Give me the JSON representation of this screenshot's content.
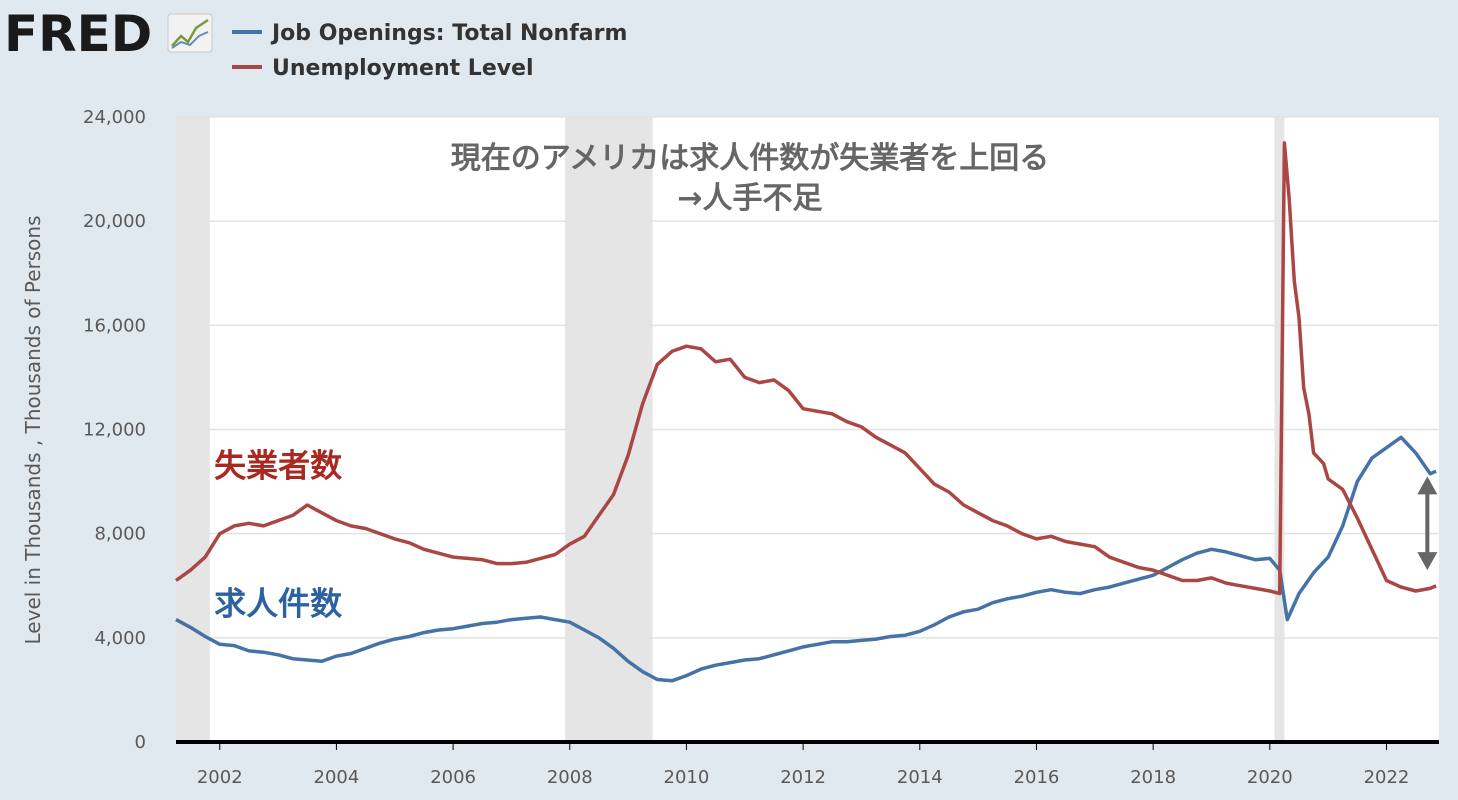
{
  "logo": {
    "text": "FRED"
  },
  "chart_data": {
    "type": "line",
    "title": "現在のアメリカは求人件数が失業者を上回る",
    "subtitle": "→人手不足",
    "xlabel": "",
    "ylabel": "Level in Thousands , Thousands of Persons",
    "xlim": [
      2001.25,
      2022.9
    ],
    "ylim": [
      0,
      24000
    ],
    "x_ticks": [
      "2002",
      "2004",
      "2006",
      "2008",
      "2010",
      "2012",
      "2014",
      "2016",
      "2018",
      "2020",
      "2022"
    ],
    "y_ticks": [
      "0",
      "4,000",
      "8,000",
      "12,000",
      "16,000",
      "20,000",
      "24,000"
    ],
    "grid": true,
    "legend_position": "top-left",
    "recessions": [
      [
        2001.25,
        2001.83
      ],
      [
        2007.92,
        2009.42
      ],
      [
        2020.08,
        2020.25
      ]
    ],
    "series": [
      {
        "name": "Job Openings: Total Nonfarm",
        "color": "#4572a7",
        "points": [
          [
            2001.25,
            4700
          ],
          [
            2001.5,
            4400
          ],
          [
            2001.75,
            4050
          ],
          [
            2002.0,
            3750
          ],
          [
            2002.25,
            3700
          ],
          [
            2002.5,
            3500
          ],
          [
            2002.75,
            3450
          ],
          [
            2003.0,
            3350
          ],
          [
            2003.25,
            3200
          ],
          [
            2003.5,
            3150
          ],
          [
            2003.75,
            3100
          ],
          [
            2004.0,
            3300
          ],
          [
            2004.25,
            3400
          ],
          [
            2004.5,
            3600
          ],
          [
            2004.75,
            3800
          ],
          [
            2005.0,
            3950
          ],
          [
            2005.25,
            4050
          ],
          [
            2005.5,
            4200
          ],
          [
            2005.75,
            4300
          ],
          [
            2006.0,
            4350
          ],
          [
            2006.25,
            4450
          ],
          [
            2006.5,
            4550
          ],
          [
            2006.75,
            4600
          ],
          [
            2007.0,
            4700
          ],
          [
            2007.25,
            4750
          ],
          [
            2007.5,
            4800
          ],
          [
            2007.75,
            4700
          ],
          [
            2008.0,
            4600
          ],
          [
            2008.25,
            4300
          ],
          [
            2008.5,
            4000
          ],
          [
            2008.75,
            3600
          ],
          [
            2009.0,
            3100
          ],
          [
            2009.25,
            2700
          ],
          [
            2009.5,
            2400
          ],
          [
            2009.75,
            2350
          ],
          [
            2010.0,
            2550
          ],
          [
            2010.25,
            2800
          ],
          [
            2010.5,
            2950
          ],
          [
            2010.75,
            3050
          ],
          [
            2011.0,
            3150
          ],
          [
            2011.25,
            3200
          ],
          [
            2011.5,
            3350
          ],
          [
            2011.75,
            3500
          ],
          [
            2012.0,
            3650
          ],
          [
            2012.25,
            3750
          ],
          [
            2012.5,
            3850
          ],
          [
            2012.75,
            3850
          ],
          [
            2013.0,
            3900
          ],
          [
            2013.25,
            3950
          ],
          [
            2013.5,
            4050
          ],
          [
            2013.75,
            4100
          ],
          [
            2014.0,
            4250
          ],
          [
            2014.25,
            4500
          ],
          [
            2014.5,
            4800
          ],
          [
            2014.75,
            5000
          ],
          [
            2015.0,
            5100
          ],
          [
            2015.25,
            5350
          ],
          [
            2015.5,
            5500
          ],
          [
            2015.75,
            5600
          ],
          [
            2016.0,
            5750
          ],
          [
            2016.25,
            5850
          ],
          [
            2016.5,
            5750
          ],
          [
            2016.75,
            5700
          ],
          [
            2017.0,
            5850
          ],
          [
            2017.25,
            5950
          ],
          [
            2017.5,
            6100
          ],
          [
            2017.75,
            6250
          ],
          [
            2018.0,
            6400
          ],
          [
            2018.25,
            6700
          ],
          [
            2018.5,
            7000
          ],
          [
            2018.75,
            7250
          ],
          [
            2019.0,
            7400
          ],
          [
            2019.25,
            7300
          ],
          [
            2019.5,
            7150
          ],
          [
            2019.75,
            7000
          ],
          [
            2020.0,
            7050
          ],
          [
            2020.17,
            6600
          ],
          [
            2020.3,
            4700
          ],
          [
            2020.5,
            5700
          ],
          [
            2020.75,
            6500
          ],
          [
            2021.0,
            7100
          ],
          [
            2021.25,
            8300
          ],
          [
            2021.5,
            10000
          ],
          [
            2021.75,
            10900
          ],
          [
            2022.0,
            11300
          ],
          [
            2022.25,
            11700
          ],
          [
            2022.5,
            11100
          ],
          [
            2022.75,
            10300
          ],
          [
            2022.85,
            10400
          ]
        ]
      },
      {
        "name": "Unemployment Level",
        "color": "#aa4643",
        "points": [
          [
            2001.25,
            6200
          ],
          [
            2001.5,
            6600
          ],
          [
            2001.75,
            7100
          ],
          [
            2002.0,
            8000
          ],
          [
            2002.25,
            8300
          ],
          [
            2002.5,
            8400
          ],
          [
            2002.75,
            8300
          ],
          [
            2003.0,
            8500
          ],
          [
            2003.25,
            8700
          ],
          [
            2003.5,
            9100
          ],
          [
            2003.75,
            8800
          ],
          [
            2004.0,
            8500
          ],
          [
            2004.25,
            8300
          ],
          [
            2004.5,
            8200
          ],
          [
            2004.75,
            8000
          ],
          [
            2005.0,
            7800
          ],
          [
            2005.25,
            7650
          ],
          [
            2005.5,
            7400
          ],
          [
            2005.75,
            7250
          ],
          [
            2006.0,
            7100
          ],
          [
            2006.25,
            7050
          ],
          [
            2006.5,
            7000
          ],
          [
            2006.75,
            6850
          ],
          [
            2007.0,
            6850
          ],
          [
            2007.25,
            6900
          ],
          [
            2007.5,
            7050
          ],
          [
            2007.75,
            7200
          ],
          [
            2008.0,
            7600
          ],
          [
            2008.25,
            7900
          ],
          [
            2008.5,
            8700
          ],
          [
            2008.75,
            9500
          ],
          [
            2009.0,
            11000
          ],
          [
            2009.25,
            13000
          ],
          [
            2009.5,
            14500
          ],
          [
            2009.75,
            15000
          ],
          [
            2010.0,
            15200
          ],
          [
            2010.25,
            15100
          ],
          [
            2010.5,
            14600
          ],
          [
            2010.75,
            14700
          ],
          [
            2011.0,
            14000
          ],
          [
            2011.25,
            13800
          ],
          [
            2011.5,
            13900
          ],
          [
            2011.75,
            13500
          ],
          [
            2012.0,
            12800
          ],
          [
            2012.25,
            12700
          ],
          [
            2012.5,
            12600
          ],
          [
            2012.75,
            12300
          ],
          [
            2013.0,
            12100
          ],
          [
            2013.25,
            11700
          ],
          [
            2013.5,
            11400
          ],
          [
            2013.75,
            11100
          ],
          [
            2014.0,
            10500
          ],
          [
            2014.25,
            9900
          ],
          [
            2014.5,
            9600
          ],
          [
            2014.75,
            9100
          ],
          [
            2015.0,
            8800
          ],
          [
            2015.25,
            8500
          ],
          [
            2015.5,
            8300
          ],
          [
            2015.75,
            8000
          ],
          [
            2016.0,
            7800
          ],
          [
            2016.25,
            7900
          ],
          [
            2016.5,
            7700
          ],
          [
            2016.75,
            7600
          ],
          [
            2017.0,
            7500
          ],
          [
            2017.25,
            7100
          ],
          [
            2017.5,
            6900
          ],
          [
            2017.75,
            6700
          ],
          [
            2018.0,
            6600
          ],
          [
            2018.25,
            6400
          ],
          [
            2018.5,
            6200
          ],
          [
            2018.75,
            6200
          ],
          [
            2019.0,
            6300
          ],
          [
            2019.25,
            6100
          ],
          [
            2019.5,
            6000
          ],
          [
            2019.75,
            5900
          ],
          [
            2020.0,
            5800
          ],
          [
            2020.17,
            5700
          ],
          [
            2020.25,
            23000
          ],
          [
            2020.33,
            20900
          ],
          [
            2020.42,
            17700
          ],
          [
            2020.5,
            16300
          ],
          [
            2020.58,
            13600
          ],
          [
            2020.67,
            12600
          ],
          [
            2020.75,
            11100
          ],
          [
            2020.92,
            10700
          ],
          [
            2021.0,
            10100
          ],
          [
            2021.25,
            9700
          ],
          [
            2021.5,
            8600
          ],
          [
            2021.75,
            7400
          ],
          [
            2022.0,
            6200
          ],
          [
            2022.25,
            5950
          ],
          [
            2022.5,
            5800
          ],
          [
            2022.75,
            5900
          ],
          [
            2022.85,
            6000
          ]
        ]
      }
    ],
    "annotations": [
      {
        "text": "失業者数",
        "x": 2003.0,
        "y": 10200,
        "color": "#aa2820"
      },
      {
        "text": "求人件数",
        "x": 2003.0,
        "y": 4900,
        "color": "#2d62a0"
      }
    ],
    "gap_arrow": {
      "x": 2022.7,
      "y1": 10200,
      "y2": 6600
    }
  }
}
